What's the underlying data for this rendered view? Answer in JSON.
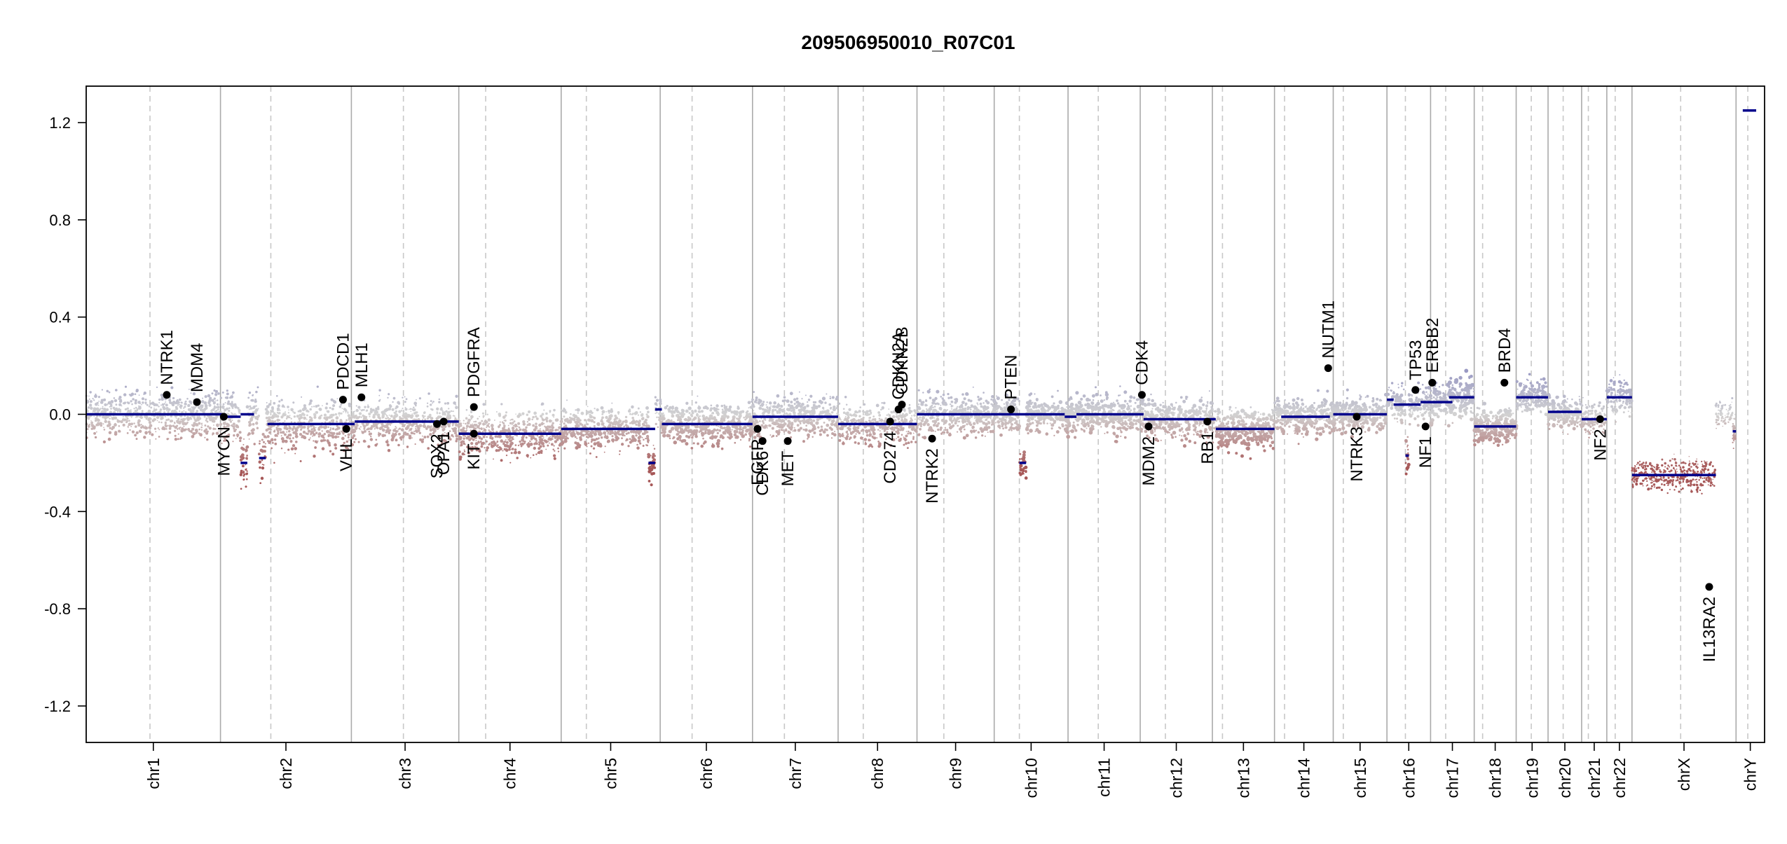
{
  "chart_data": {
    "type": "scatter",
    "title": "209506950010_R07C01",
    "xlabel": "",
    "ylabel": "",
    "ylim": [
      -1.35,
      1.35
    ],
    "y_ticks": [
      -1.2,
      -0.8,
      -0.4,
      0.0,
      0.4,
      0.8,
      1.2
    ],
    "y_tick_labels": [
      "-1.2",
      "-0.8",
      "-0.4",
      "0.0",
      "0.4",
      "0.8",
      "1.2"
    ],
    "grid": false,
    "x_units": "cumulative genome position (chromosome bins)",
    "chromosomes": [
      {
        "name": "chr1",
        "start": 0.0,
        "end": 0.08,
        "centromere": 0.038,
        "spread": 0.09,
        "dot_size": 1.0
      },
      {
        "name": "chr2",
        "start": 0.08,
        "end": 0.158,
        "centromere": 0.11,
        "spread": 0.1,
        "dot_size": 1.0
      },
      {
        "name": "chr3",
        "start": 0.158,
        "end": 0.222,
        "centromere": 0.189,
        "spread": 0.09,
        "dot_size": 1.0
      },
      {
        "name": "chr4",
        "start": 0.222,
        "end": 0.283,
        "centromere": 0.238,
        "spread": 0.09,
        "dot_size": 1.0
      },
      {
        "name": "chr5",
        "start": 0.283,
        "end": 0.342,
        "centromere": 0.298,
        "spread": 0.08,
        "dot_size": 1.1
      },
      {
        "name": "chr6",
        "start": 0.342,
        "end": 0.397,
        "centromere": 0.361,
        "spread": 0.08,
        "dot_size": 1.2
      },
      {
        "name": "chr7",
        "start": 0.397,
        "end": 0.448,
        "centromere": 0.416,
        "spread": 0.08,
        "dot_size": 1.1
      },
      {
        "name": "chr8",
        "start": 0.448,
        "end": 0.495,
        "centromere": 0.463,
        "spread": 0.08,
        "dot_size": 1.0
      },
      {
        "name": "chr9",
        "start": 0.495,
        "end": 0.541,
        "centromere": 0.511,
        "spread": 0.08,
        "dot_size": 1.1
      },
      {
        "name": "chr10",
        "start": 0.541,
        "end": 0.585,
        "centromere": 0.556,
        "spread": 0.07,
        "dot_size": 1.2
      },
      {
        "name": "chr11",
        "start": 0.585,
        "end": 0.628,
        "centromere": 0.603,
        "spread": 0.08,
        "dot_size": 1.2
      },
      {
        "name": "chr12",
        "start": 0.628,
        "end": 0.671,
        "centromere": 0.643,
        "spread": 0.08,
        "dot_size": 1.2
      },
      {
        "name": "chr13",
        "start": 0.671,
        "end": 0.708,
        "centromere": 0.677,
        "spread": 0.08,
        "dot_size": 1.3
      },
      {
        "name": "chr14",
        "start": 0.708,
        "end": 0.743,
        "centromere": 0.714,
        "spread": 0.07,
        "dot_size": 1.2
      },
      {
        "name": "chr15",
        "start": 0.743,
        "end": 0.775,
        "centromere": 0.749,
        "spread": 0.07,
        "dot_size": 1.2
      },
      {
        "name": "chr16",
        "start": 0.775,
        "end": 0.801,
        "centromere": 0.786,
        "spread": 0.07,
        "dot_size": 1.1
      },
      {
        "name": "chr17",
        "start": 0.801,
        "end": 0.827,
        "centromere": 0.81,
        "spread": 0.08,
        "dot_size": 1.3
      },
      {
        "name": "chr18",
        "start": 0.827,
        "end": 0.852,
        "centromere": 0.832,
        "spread": 0.07,
        "dot_size": 1.3
      },
      {
        "name": "chr19",
        "start": 0.852,
        "end": 0.871,
        "centromere": 0.861,
        "spread": 0.07,
        "dot_size": 1.1
      },
      {
        "name": "chr20",
        "start": 0.871,
        "end": 0.891,
        "centromere": 0.88,
        "spread": 0.07,
        "dot_size": 1.2
      },
      {
        "name": "chr21",
        "start": 0.891,
        "end": 0.906,
        "centromere": 0.895,
        "spread": 0.06,
        "dot_size": 1.0
      },
      {
        "name": "chr22",
        "start": 0.906,
        "end": 0.921,
        "centromere": 0.911,
        "spread": 0.07,
        "dot_size": 1.0
      },
      {
        "name": "chrX",
        "start": 0.921,
        "end": 0.983,
        "centromere": 0.95,
        "spread": 0.06,
        "dot_size": 0.8
      },
      {
        "name": "chrY",
        "start": 0.983,
        "end": 1.0,
        "centromere": 0.99,
        "spread": 0.0,
        "dot_size": 0.6
      }
    ],
    "segments": [
      {
        "x0": 0.0,
        "x1": 0.082,
        "y": 0.0
      },
      {
        "x0": 0.082,
        "x1": 0.092,
        "y": -0.01
      },
      {
        "x0": 0.092,
        "x1": 0.1,
        "y": 0.0
      },
      {
        "x0": 0.092,
        "x1": 0.096,
        "y": -0.2
      },
      {
        "x0": 0.103,
        "x1": 0.107,
        "y": -0.18
      },
      {
        "x0": 0.108,
        "x1": 0.16,
        "y": -0.04
      },
      {
        "x0": 0.16,
        "x1": 0.222,
        "y": -0.03
      },
      {
        "x0": 0.222,
        "x1": 0.283,
        "y": -0.08
      },
      {
        "x0": 0.283,
        "x1": 0.339,
        "y": -0.06
      },
      {
        "x0": 0.335,
        "x1": 0.339,
        "y": -0.2
      },
      {
        "x0": 0.339,
        "x1": 0.343,
        "y": 0.02
      },
      {
        "x0": 0.343,
        "x1": 0.397,
        "y": -0.04
      },
      {
        "x0": 0.397,
        "x1": 0.448,
        "y": -0.01
      },
      {
        "x0": 0.448,
        "x1": 0.495,
        "y": -0.04
      },
      {
        "x0": 0.495,
        "x1": 0.539,
        "y": 0.0
      },
      {
        "x0": 0.539,
        "x1": 0.583,
        "y": 0.0
      },
      {
        "x0": 0.556,
        "x1": 0.56,
        "y": -0.2
      },
      {
        "x0": 0.583,
        "x1": 0.59,
        "y": -0.01
      },
      {
        "x0": 0.59,
        "x1": 0.63,
        "y": 0.0
      },
      {
        "x0": 0.63,
        "x1": 0.673,
        "y": -0.02
      },
      {
        "x0": 0.673,
        "x1": 0.708,
        "y": -0.06
      },
      {
        "x0": 0.712,
        "x1": 0.741,
        "y": -0.01
      },
      {
        "x0": 0.743,
        "x1": 0.775,
        "y": 0.0
      },
      {
        "x0": 0.775,
        "x1": 0.779,
        "y": 0.06
      },
      {
        "x0": 0.779,
        "x1": 0.795,
        "y": 0.04
      },
      {
        "x0": 0.786,
        "x1": 0.788,
        "y": -0.17
      },
      {
        "x0": 0.795,
        "x1": 0.814,
        "y": 0.05
      },
      {
        "x0": 0.812,
        "x1": 0.827,
        "y": 0.07
      },
      {
        "x0": 0.827,
        "x1": 0.852,
        "y": -0.05
      },
      {
        "x0": 0.852,
        "x1": 0.871,
        "y": 0.07
      },
      {
        "x0": 0.871,
        "x1": 0.891,
        "y": 0.01
      },
      {
        "x0": 0.891,
        "x1": 0.906,
        "y": -0.02
      },
      {
        "x0": 0.906,
        "x1": 0.921,
        "y": 0.07
      },
      {
        "x0": 0.921,
        "x1": 0.971,
        "y": -0.25
      },
      {
        "x0": 0.981,
        "x1": 0.983,
        "y": -0.07
      },
      {
        "x0": 0.987,
        "x1": 0.995,
        "y": 1.25
      }
    ],
    "genes": [
      {
        "name": "NTRK1",
        "x": 0.048,
        "y": 0.08,
        "label_side": "above"
      },
      {
        "name": "MDM4",
        "x": 0.066,
        "y": 0.05,
        "label_side": "above"
      },
      {
        "name": "MYCN",
        "x": 0.082,
        "y": -0.01,
        "label_side": "below"
      },
      {
        "name": "PDCD1",
        "x": 0.153,
        "y": 0.06,
        "label_side": "above"
      },
      {
        "name": "VHL",
        "x": 0.155,
        "y": -0.06,
        "label_side": "below"
      },
      {
        "name": "MLH1",
        "x": 0.164,
        "y": 0.07,
        "label_side": "above"
      },
      {
        "name": "SOX2",
        "x": 0.209,
        "y": -0.04,
        "label_side": "below"
      },
      {
        "name": "OPA1",
        "x": 0.213,
        "y": -0.03,
        "label_side": "below"
      },
      {
        "name": "PDGFRA",
        "x": 0.231,
        "y": 0.03,
        "label_side": "above"
      },
      {
        "name": "KIT",
        "x": 0.231,
        "y": -0.08,
        "label_side": "below"
      },
      {
        "name": "EGFR",
        "x": 0.4,
        "y": -0.06,
        "label_side": "below"
      },
      {
        "name": "CDK6",
        "x": 0.403,
        "y": -0.11,
        "label_side": "below"
      },
      {
        "name": "MET",
        "x": 0.418,
        "y": -0.11,
        "label_side": "below"
      },
      {
        "name": "CD274",
        "x": 0.479,
        "y": -0.03,
        "label_side": "below"
      },
      {
        "name": "CDKN2A",
        "x": 0.484,
        "y": 0.02,
        "label_side": "above"
      },
      {
        "name": "CDKN2B",
        "x": 0.486,
        "y": 0.04,
        "label_side": "above"
      },
      {
        "name": "NTRK2",
        "x": 0.504,
        "y": -0.1,
        "label_side": "below"
      },
      {
        "name": "PTEN",
        "x": 0.551,
        "y": 0.02,
        "label_side": "above"
      },
      {
        "name": "CDK4",
        "x": 0.629,
        "y": 0.08,
        "label_side": "above"
      },
      {
        "name": "MDM2",
        "x": 0.633,
        "y": -0.05,
        "label_side": "below"
      },
      {
        "name": "RB1",
        "x": 0.668,
        "y": -0.03,
        "label_side": "below"
      },
      {
        "name": "NUTM1",
        "x": 0.74,
        "y": 0.19,
        "label_side": "above"
      },
      {
        "name": "NTRK3",
        "x": 0.757,
        "y": -0.01,
        "label_side": "below"
      },
      {
        "name": "TP53",
        "x": 0.792,
        "y": 0.1,
        "label_side": "above"
      },
      {
        "name": "ERBB2",
        "x": 0.802,
        "y": 0.13,
        "label_side": "above"
      },
      {
        "name": "NF1",
        "x": 0.798,
        "y": -0.05,
        "label_side": "below"
      },
      {
        "name": "BRD4",
        "x": 0.845,
        "y": 0.13,
        "label_side": "above"
      },
      {
        "name": "NF2",
        "x": 0.902,
        "y": -0.02,
        "label_side": "below"
      },
      {
        "name": "IL13RA2",
        "x": 0.967,
        "y": -0.71,
        "label_side": "below"
      }
    ],
    "colors": {
      "gain": "#8c8cc0",
      "loss": "#a75858",
      "neutral": "#d2d2d2",
      "segment": "#00008b",
      "gene_point": "#000000",
      "chromosome_divider": "#aaaaaa",
      "centromere_divider": "#c8c8c8"
    }
  }
}
